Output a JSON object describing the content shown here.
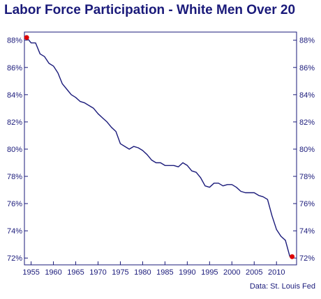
{
  "chart_data": {
    "type": "line",
    "title": "Labor Force Participation - White Men Over 20",
    "source": "Data: St. Louis Fed",
    "xlabel": "",
    "ylabel": "",
    "xlim": [
      1953.5,
      2014.5
    ],
    "ylim": [
      71.5,
      88.6
    ],
    "x_ticks": [
      1955,
      1960,
      1965,
      1970,
      1975,
      1980,
      1985,
      1990,
      1995,
      2000,
      2005,
      2010
    ],
    "y_ticks": [
      72,
      74,
      76,
      78,
      80,
      82,
      84,
      86,
      88
    ],
    "y_tick_format": "%",
    "grid": false,
    "colors": {
      "line": "#1a1a7a",
      "marker": "#dd0000",
      "text": "#1a1a7a"
    },
    "series": [
      {
        "x": [
          1954.0,
          1955.0,
          1956.0,
          1957.0,
          1958.0,
          1959.0,
          1960.0,
          1961.0,
          1962.0,
          1963.0,
          1964.0,
          1965.0,
          1966.0,
          1967.0,
          1968.0,
          1969.0,
          1970.0,
          1971.0,
          1972.0,
          1973.0,
          1974.0,
          1975.0,
          1976.0,
          1977.0,
          1978.0,
          1979.0,
          1980.0,
          1981.0,
          1982.0,
          1983.0,
          1984.0,
          1985.0,
          1986.0,
          1987.0,
          1988.0,
          1989.0,
          1990.0,
          1991.0,
          1992.0,
          1993.0,
          1994.0,
          1995.0,
          1996.0,
          1997.0,
          1998.0,
          1999.0,
          2000.0,
          2001.0,
          2002.0,
          2003.0,
          2004.0,
          2005.0,
          2006.0,
          2007.0,
          2008.0,
          2009.0,
          2010.0,
          2011.0,
          2012.0,
          2013.0
        ],
        "y": [
          88.2,
          87.8,
          87.8,
          87.0,
          86.8,
          86.3,
          86.1,
          85.6,
          84.8,
          84.4,
          84.0,
          83.8,
          83.5,
          83.4,
          83.2,
          83.0,
          82.6,
          82.3,
          82.0,
          81.6,
          81.3,
          80.4,
          80.2,
          80.0,
          80.2,
          80.1,
          79.9,
          79.6,
          79.2,
          79.0,
          79.0,
          78.8,
          78.8,
          78.8,
          78.7,
          79.0,
          78.8,
          78.4,
          78.3,
          77.9,
          77.3,
          77.2,
          77.5,
          77.5,
          77.3,
          77.4,
          77.4,
          77.2,
          76.9,
          76.8,
          76.8,
          76.8,
          76.6,
          76.5,
          76.3,
          75.1,
          74.1,
          73.6,
          73.3,
          72.1
        ]
      }
    ],
    "highlight_points": [
      {
        "x": 1954.0,
        "y": 88.2
      },
      {
        "x": 2013.5,
        "y": 72.1
      }
    ]
  }
}
